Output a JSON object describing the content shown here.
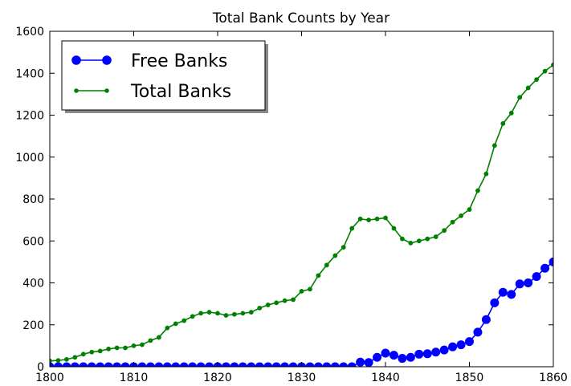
{
  "chart_data": {
    "type": "line",
    "title": "Total Bank Counts by Year",
    "xlabel": "",
    "ylabel": "",
    "xlim": [
      1800,
      1860
    ],
    "ylim": [
      0,
      1600
    ],
    "x_ticks": [
      "1800",
      "1810",
      "1820",
      "1830",
      "1840",
      "1850",
      "1860"
    ],
    "y_ticks": [
      "0",
      "200",
      "400",
      "600",
      "800",
      "1000",
      "1200",
      "1400",
      "1600"
    ],
    "grid": false,
    "legend_position": "top-left",
    "series": [
      {
        "name": "Free Banks",
        "color": "#0000ff",
        "marker": "large-circle",
        "x": [
          1800,
          1801,
          1802,
          1803,
          1804,
          1805,
          1806,
          1807,
          1808,
          1809,
          1810,
          1811,
          1812,
          1813,
          1814,
          1815,
          1816,
          1817,
          1818,
          1819,
          1820,
          1821,
          1822,
          1823,
          1824,
          1825,
          1826,
          1827,
          1828,
          1829,
          1830,
          1831,
          1832,
          1833,
          1834,
          1835,
          1836,
          1837,
          1838,
          1839,
          1840,
          1841,
          1842,
          1843,
          1844,
          1845,
          1846,
          1847,
          1848,
          1849,
          1850,
          1851,
          1852,
          1853,
          1854,
          1855,
          1856,
          1857,
          1858,
          1859,
          1860
        ],
        "values": [
          0,
          0,
          0,
          0,
          0,
          0,
          0,
          0,
          0,
          0,
          0,
          0,
          0,
          0,
          0,
          0,
          0,
          0,
          0,
          0,
          0,
          0,
          0,
          0,
          0,
          0,
          0,
          0,
          0,
          0,
          0,
          0,
          0,
          0,
          0,
          0,
          0,
          22,
          20,
          45,
          65,
          55,
          40,
          45,
          60,
          62,
          70,
          80,
          95,
          105,
          120,
          165,
          225,
          305,
          355,
          345,
          395,
          400,
          430,
          470,
          500
        ]
      },
      {
        "name": "Total Banks",
        "color": "#008000",
        "marker": "small-dot",
        "x": [
          1800,
          1801,
          1802,
          1803,
          1804,
          1805,
          1806,
          1807,
          1808,
          1809,
          1810,
          1811,
          1812,
          1813,
          1814,
          1815,
          1816,
          1817,
          1818,
          1819,
          1820,
          1821,
          1822,
          1823,
          1824,
          1825,
          1826,
          1827,
          1828,
          1829,
          1830,
          1831,
          1832,
          1833,
          1834,
          1835,
          1836,
          1837,
          1838,
          1839,
          1840,
          1841,
          1842,
          1843,
          1844,
          1845,
          1846,
          1847,
          1848,
          1849,
          1850,
          1851,
          1852,
          1853,
          1854,
          1855,
          1856,
          1857,
          1858,
          1859,
          1860
        ],
        "values": [
          28,
          30,
          35,
          45,
          60,
          70,
          75,
          85,
          90,
          90,
          100,
          105,
          125,
          140,
          185,
          205,
          220,
          240,
          255,
          260,
          255,
          245,
          250,
          255,
          260,
          280,
          295,
          305,
          315,
          320,
          360,
          370,
          435,
          485,
          530,
          570,
          660,
          705,
          700,
          705,
          710,
          660,
          610,
          590,
          600,
          610,
          620,
          650,
          690,
          720,
          750,
          840,
          920,
          1055,
          1160,
          1210,
          1285,
          1330,
          1370,
          1410,
          1440
        ]
      }
    ]
  }
}
